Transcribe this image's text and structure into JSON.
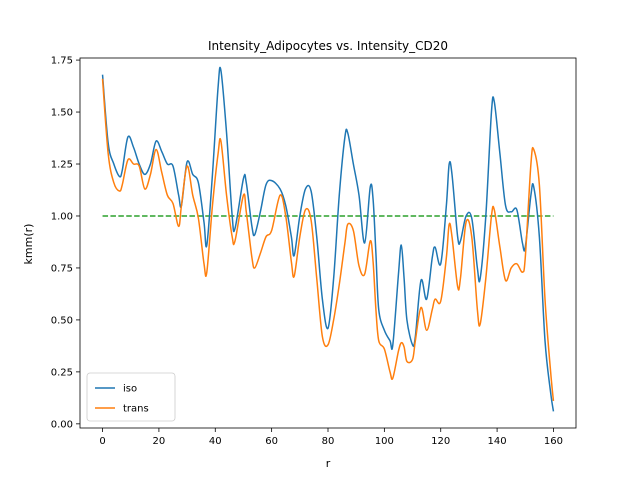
{
  "chart_data": {
    "type": "line",
    "title": "Intensity_Adipocytes vs. Intensity_CD20",
    "xlabel": "r",
    "ylabel": "kmm(r)",
    "xlim": [
      -8,
      168
    ],
    "ylim": [
      -0.02,
      1.76
    ],
    "xticks": [
      "0",
      "20",
      "40",
      "60",
      "80",
      "100",
      "120",
      "140",
      "160"
    ],
    "yticks": [
      "0.00",
      "0.25",
      "0.50",
      "0.75",
      "1.00",
      "1.25",
      "1.50",
      "1.75"
    ],
    "grid": false,
    "legend_position": "lower-left",
    "series": [
      {
        "name": "iso",
        "color": "#1f77b4",
        "style": "solid",
        "points": [
          [
            0,
            1.68
          ],
          [
            2,
            1.35
          ],
          [
            4,
            1.25
          ],
          [
            6,
            1.19
          ],
          [
            7,
            1.22
          ],
          [
            9,
            1.38
          ],
          [
            11,
            1.33
          ],
          [
            13,
            1.25
          ],
          [
            15,
            1.2
          ],
          [
            17,
            1.25
          ],
          [
            19,
            1.36
          ],
          [
            21,
            1.31
          ],
          [
            23,
            1.25
          ],
          [
            25,
            1.24
          ],
          [
            27,
            1.1
          ],
          [
            28,
            1.05
          ],
          [
            30,
            1.26
          ],
          [
            32,
            1.2
          ],
          [
            34,
            1.16
          ],
          [
            36,
            0.97
          ],
          [
            37,
            0.86
          ],
          [
            39,
            1.2
          ],
          [
            41,
            1.62
          ],
          [
            42,
            1.7
          ],
          [
            44,
            1.4
          ],
          [
            46,
            1.0
          ],
          [
            47,
            0.94
          ],
          [
            50,
            1.18
          ],
          [
            51,
            1.16
          ],
          [
            53,
            0.95
          ],
          [
            54,
            0.91
          ],
          [
            56,
            1.02
          ],
          [
            58,
            1.15
          ],
          [
            60,
            1.17
          ],
          [
            63,
            1.13
          ],
          [
            65,
            1.05
          ],
          [
            67,
            0.9
          ],
          [
            68,
            0.81
          ],
          [
            70,
            1.0
          ],
          [
            72,
            1.13
          ],
          [
            74,
            1.12
          ],
          [
            76,
            0.9
          ],
          [
            78,
            0.6
          ],
          [
            80,
            0.46
          ],
          [
            82,
            0.7
          ],
          [
            84,
            1.1
          ],
          [
            86,
            1.38
          ],
          [
            87,
            1.4
          ],
          [
            89,
            1.25
          ],
          [
            91,
            1.1
          ],
          [
            93,
            0.87
          ],
          [
            95,
            1.14
          ],
          [
            96,
            1.08
          ],
          [
            97,
            0.82
          ],
          [
            98,
            0.55
          ],
          [
            100,
            0.45
          ],
          [
            102,
            0.4
          ],
          [
            103,
            0.38
          ],
          [
            105,
            0.72
          ],
          [
            106,
            0.86
          ],
          [
            107,
            0.7
          ],
          [
            108,
            0.5
          ],
          [
            110,
            0.38
          ],
          [
            111,
            0.42
          ],
          [
            113,
            0.69
          ],
          [
            115,
            0.6
          ],
          [
            117,
            0.8
          ],
          [
            118,
            0.85
          ],
          [
            120,
            0.77
          ],
          [
            122,
            1.05
          ],
          [
            123,
            1.25
          ],
          [
            124,
            1.2
          ],
          [
            126,
            0.9
          ],
          [
            127,
            0.88
          ],
          [
            129,
            1.0
          ],
          [
            131,
            0.99
          ],
          [
            133,
            0.75
          ],
          [
            134,
            0.7
          ],
          [
            136,
            1.0
          ],
          [
            138,
            1.5
          ],
          [
            139,
            1.55
          ],
          [
            141,
            1.3
          ],
          [
            143,
            1.05
          ],
          [
            145,
            1.02
          ],
          [
            147,
            1.03
          ],
          [
            149,
            0.87
          ],
          [
            150,
            0.85
          ],
          [
            152,
            1.1
          ],
          [
            153,
            1.14
          ],
          [
            155,
            0.9
          ],
          [
            157,
            0.4
          ],
          [
            159,
            0.15
          ],
          [
            160,
            0.06
          ]
        ]
      },
      {
        "name": "trans",
        "color": "#ff7f0e",
        "style": "solid",
        "points": [
          [
            0,
            1.66
          ],
          [
            2,
            1.3
          ],
          [
            4,
            1.16
          ],
          [
            6,
            1.12
          ],
          [
            7,
            1.15
          ],
          [
            9,
            1.27
          ],
          [
            11,
            1.25
          ],
          [
            13,
            1.24
          ],
          [
            15,
            1.13
          ],
          [
            17,
            1.2
          ],
          [
            19,
            1.32
          ],
          [
            21,
            1.21
          ],
          [
            23,
            1.1
          ],
          [
            25,
            1.06
          ],
          [
            27,
            0.95
          ],
          [
            28,
            1.05
          ],
          [
            30,
            1.24
          ],
          [
            32,
            1.1
          ],
          [
            34,
            0.99
          ],
          [
            36,
            0.77
          ],
          [
            37,
            0.73
          ],
          [
            39,
            1.05
          ],
          [
            41,
            1.3
          ],
          [
            42,
            1.36
          ],
          [
            44,
            1.1
          ],
          [
            46,
            0.9
          ],
          [
            47,
            0.88
          ],
          [
            50,
            1.1
          ],
          [
            51,
            1.02
          ],
          [
            53,
            0.8
          ],
          [
            54,
            0.75
          ],
          [
            56,
            0.82
          ],
          [
            58,
            0.9
          ],
          [
            60,
            0.93
          ],
          [
            63,
            1.1
          ],
          [
            65,
            1.0
          ],
          [
            67,
            0.78
          ],
          [
            68,
            0.71
          ],
          [
            70,
            0.9
          ],
          [
            72,
            1.03
          ],
          [
            74,
            0.98
          ],
          [
            76,
            0.7
          ],
          [
            78,
            0.42
          ],
          [
            80,
            0.38
          ],
          [
            82,
            0.5
          ],
          [
            84,
            0.67
          ],
          [
            86,
            0.87
          ],
          [
            87,
            0.96
          ],
          [
            89,
            0.93
          ],
          [
            91,
            0.76
          ],
          [
            93,
            0.72
          ],
          [
            95,
            0.88
          ],
          [
            96,
            0.78
          ],
          [
            97,
            0.55
          ],
          [
            98,
            0.4
          ],
          [
            100,
            0.36
          ],
          [
            102,
            0.25
          ],
          [
            103,
            0.22
          ],
          [
            105,
            0.35
          ],
          [
            106,
            0.39
          ],
          [
            107,
            0.37
          ],
          [
            108,
            0.3
          ],
          [
            110,
            0.31
          ],
          [
            111,
            0.4
          ],
          [
            113,
            0.56
          ],
          [
            115,
            0.45
          ],
          [
            117,
            0.55
          ],
          [
            118,
            0.6
          ],
          [
            120,
            0.59
          ],
          [
            122,
            0.8
          ],
          [
            123,
            0.96
          ],
          [
            124,
            0.9
          ],
          [
            126,
            0.66
          ],
          [
            127,
            0.7
          ],
          [
            129,
            0.97
          ],
          [
            131,
            0.9
          ],
          [
            133,
            0.55
          ],
          [
            134,
            0.48
          ],
          [
            136,
            0.7
          ],
          [
            138,
            1.0
          ],
          [
            139,
            1.03
          ],
          [
            141,
            0.85
          ],
          [
            143,
            0.69
          ],
          [
            145,
            0.75
          ],
          [
            147,
            0.77
          ],
          [
            149,
            0.73
          ],
          [
            150,
            0.8
          ],
          [
            152,
            1.25
          ],
          [
            153,
            1.32
          ],
          [
            155,
            1.15
          ],
          [
            157,
            0.6
          ],
          [
            159,
            0.25
          ],
          [
            160,
            0.11
          ]
        ]
      },
      {
        "name": "",
        "color": "#2ca02c",
        "style": "dashed",
        "points": [
          [
            0,
            1.0
          ],
          [
            160,
            1.0
          ]
        ]
      }
    ],
    "legend": [
      {
        "label": "iso",
        "color": "#1f77b4"
      },
      {
        "label": "trans",
        "color": "#ff7f0e"
      }
    ]
  }
}
